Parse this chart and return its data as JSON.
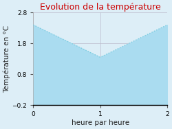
{
  "title": "Evolution de la température",
  "xlabel": "heure par heure",
  "ylabel": "Température en °C",
  "x": [
    0,
    1,
    2
  ],
  "y": [
    2.4,
    1.35,
    2.4
  ],
  "ylim": [
    -0.2,
    2.8
  ],
  "xlim": [
    0,
    2
  ],
  "xticks": [
    0,
    1,
    2
  ],
  "yticks": [
    -0.2,
    0.8,
    1.8,
    2.8
  ],
  "line_color": "#7bcde0",
  "fill_color": "#aadcf0",
  "bg_color": "#ddeef7",
  "plot_bg_color": "#ddeef7",
  "title_color": "#cc0000",
  "title_fontsize": 9,
  "axis_label_fontsize": 7.5,
  "tick_fontsize": 6.5,
  "line_width": 1.0,
  "line_style": "dotted",
  "grid_color": "#bbbbcc",
  "bottom_spine_color": "#000000"
}
